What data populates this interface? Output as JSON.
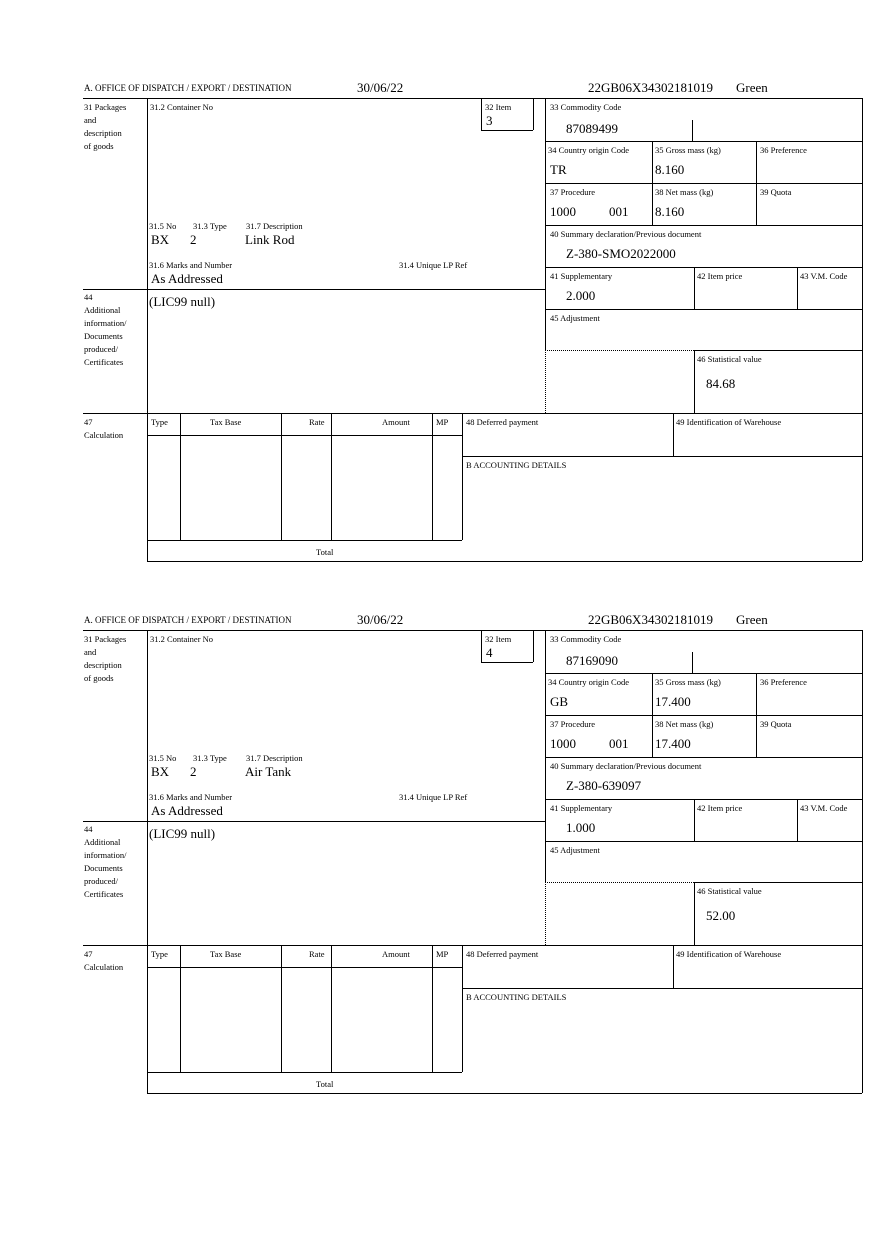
{
  "labels": {
    "office": "A.  OFFICE OF DISPATCH / EXPORT / DESTINATION",
    "packages": [
      "31 Packages",
      "and",
      "description",
      "of goods"
    ],
    "container": "31.2 Container No",
    "item": "32 Item",
    "no": "31.5 No",
    "type": "31.3 Type",
    "description": "31.7 Description",
    "marks": "31.6 Marks and Number",
    "unique_ref": "31.4 Unique LP Ref",
    "commodity": "33 Commodity Code",
    "country": "34 Country origin Code",
    "gross": "35 Gross mass (kg)",
    "preference": "36 Preference",
    "procedure": "37 Procedure",
    "net": "38 Net mass (kg)",
    "quota": "39 Quota",
    "summary": "40 Summary declaration/Previous document",
    "supplementary": "41 Supplementary",
    "item_price": "42 Item price",
    "vm_code": "43 V.M. Code",
    "additional": [
      "44",
      "Additional",
      "information/",
      "Documents",
      "produced/",
      "Certificates"
    ],
    "adjustment": "45 Adjustment",
    "statistical": "46 Statistical value",
    "calculation": [
      "47",
      "Calculation"
    ],
    "calc_cols": [
      "Type",
      "Tax Base",
      "Rate",
      "Amount",
      "MP"
    ],
    "total": "Total",
    "deferred": "48 Deferred payment",
    "warehouse": "49 Identification of Warehouse",
    "accounting": "B ACCOUNTING DETAILS"
  },
  "forms": [
    {
      "date": "30/06/22",
      "reference": "22GB06X34302181019",
      "route": "Green",
      "item": "3",
      "no": "BX",
      "type": "2",
      "description": "Link Rod",
      "marks": "As Addressed",
      "commodity": "87089499",
      "country": "TR",
      "gross": "8.160",
      "procedure": "1000",
      "procedure_extra": "001",
      "net": "8.160",
      "summary": "Z-380-SMO2022000",
      "supplementary": "2.000",
      "additional": "(LIC99 null)",
      "statistical": "84.68"
    },
    {
      "date": "30/06/22",
      "reference": "22GB06X34302181019",
      "route": "Green",
      "item": "4",
      "no": "BX",
      "type": "2",
      "description": "Air Tank",
      "marks": "As Addressed",
      "commodity": "87169090",
      "country": "GB",
      "gross": "17.400",
      "procedure": "1000",
      "procedure_extra": "001",
      "net": "17.400",
      "summary": "Z-380-639097",
      "supplementary": "1.000",
      "additional": "(LIC99 null)",
      "statistical": "52.00"
    }
  ]
}
